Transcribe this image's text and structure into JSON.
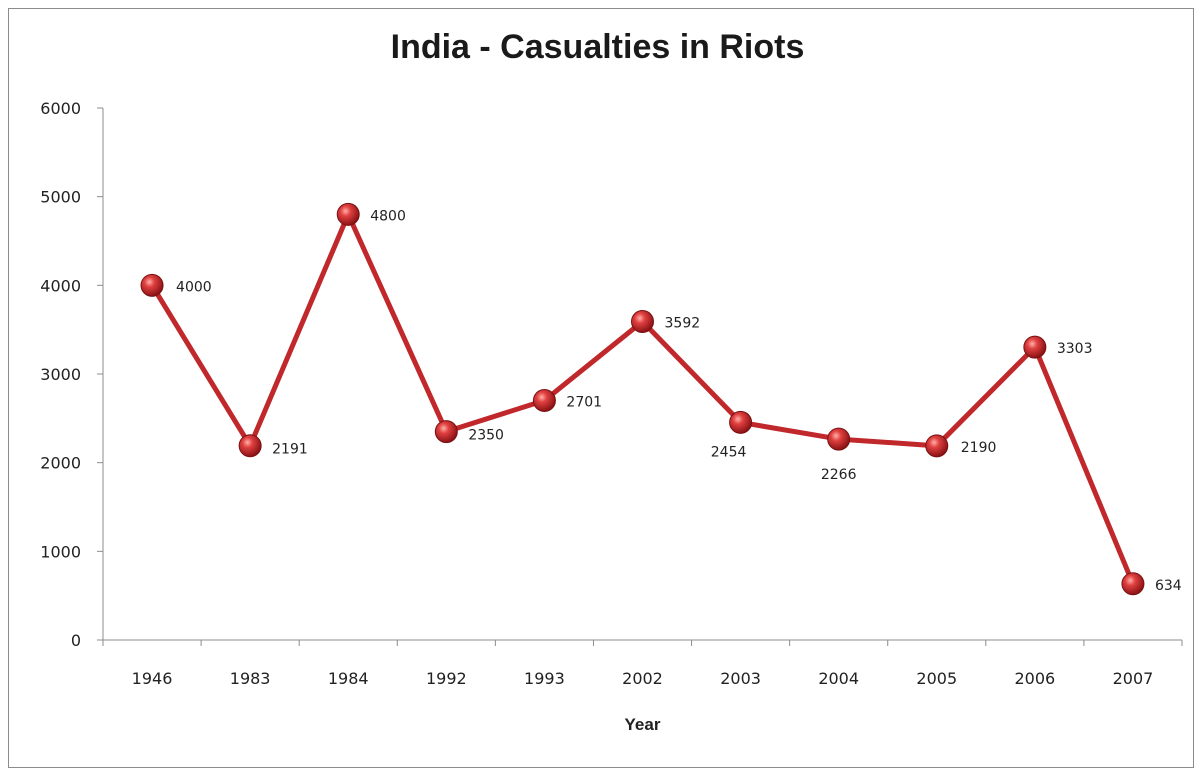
{
  "chart_data": {
    "type": "line",
    "title": "India - Casualties in Riots",
    "xlabel": "Year",
    "ylabel": "",
    "categories": [
      "1946",
      "1983",
      "1984",
      "1992",
      "1993",
      "2002",
      "2003",
      "2004",
      "2005",
      "2006",
      "2007"
    ],
    "series": [
      {
        "values": [
          4000,
          2191,
          4800,
          2350,
          2701,
          3592,
          2454,
          2266,
          2190,
          3303,
          634
        ],
        "color": "#c0282b"
      }
    ],
    "data_labels": [
      "4000",
      "2191",
      "4800",
      "2350",
      "2701",
      "3592",
      "2454",
      "2266",
      "2190",
      "3303",
      "634"
    ],
    "ylim": [
      0,
      6000
    ],
    "yticks": [
      "0",
      "1000",
      "2000",
      "3000",
      "4000",
      "5000",
      "6000"
    ],
    "grid": false,
    "legend": "none"
  }
}
